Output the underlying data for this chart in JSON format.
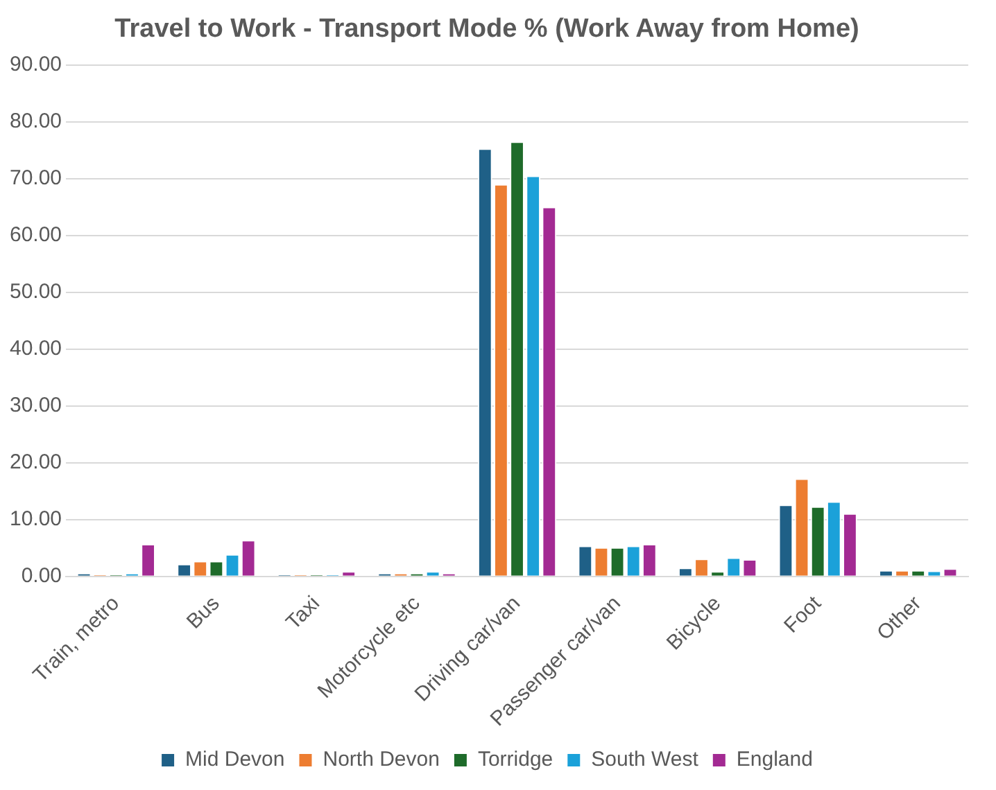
{
  "chart_data": {
    "type": "bar",
    "title": "Travel to Work - Transport Mode % (Work Away from Home)",
    "categories": [
      "Train, metro",
      "Bus",
      "Taxi",
      "Motorcycle etc",
      "Driving car/van",
      "Passenger car/van",
      "Bicycle",
      "Foot",
      "Other"
    ],
    "series": [
      {
        "name": "Mid Devon",
        "color": "#1f6087",
        "values": [
          0.6,
          2.2,
          0.3,
          0.6,
          75.3,
          5.4,
          1.5,
          12.6,
          1.1
        ]
      },
      {
        "name": "North Devon",
        "color": "#ed7d31",
        "values": [
          0.3,
          2.7,
          0.3,
          0.6,
          69.0,
          5.1,
          3.1,
          17.2,
          1.1
        ]
      },
      {
        "name": "Torridge",
        "color": "#1e6b2a",
        "values": [
          0.3,
          2.7,
          0.3,
          0.6,
          76.5,
          5.1,
          0.9,
          12.3,
          1.1
        ]
      },
      {
        "name": "South West",
        "color": "#1ba1d9",
        "values": [
          0.6,
          3.9,
          0.3,
          0.9,
          70.5,
          5.4,
          3.3,
          13.2,
          1.0
        ]
      },
      {
        "name": "England",
        "color": "#a32a93",
        "values": [
          5.7,
          6.4,
          0.9,
          0.6,
          65.0,
          5.7,
          3.0,
          11.1,
          1.4
        ]
      }
    ],
    "ylim": [
      0,
      90
    ],
    "yticks": [
      {
        "value": 0,
        "label": "0.00"
      },
      {
        "value": 10,
        "label": "10.00"
      },
      {
        "value": 20,
        "label": "20.00"
      },
      {
        "value": 30,
        "label": "30.00"
      },
      {
        "value": 40,
        "label": "40.00"
      },
      {
        "value": 50,
        "label": "50.00"
      },
      {
        "value": 60,
        "label": "60.00"
      },
      {
        "value": 70,
        "label": "70.00"
      },
      {
        "value": 80,
        "label": "80.00"
      },
      {
        "value": 90,
        "label": "90.00"
      }
    ],
    "grid": "y",
    "legend": "bottom"
  }
}
